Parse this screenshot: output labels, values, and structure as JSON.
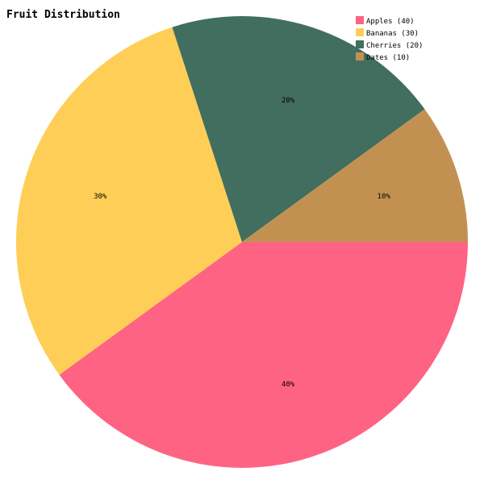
{
  "chart_data": {
    "type": "pie",
    "title": "Fruit Distribution",
    "categories": [
      "Apples",
      "Bananas",
      "Cherries",
      "Dates"
    ],
    "values": [
      40,
      30,
      20,
      10
    ],
    "slice_labels": [
      "40%",
      "30%",
      "20%",
      "10%"
    ],
    "legend": [
      "Apples (40)",
      "Bananas (30)",
      "Cherries (20)",
      "Dates (10)"
    ],
    "legend_position": "top-right",
    "colors": [
      "#ff6384",
      "#ffce56",
      "#416e5e",
      "#c29152"
    ],
    "start_angle": 0,
    "direction": "clockwise"
  }
}
